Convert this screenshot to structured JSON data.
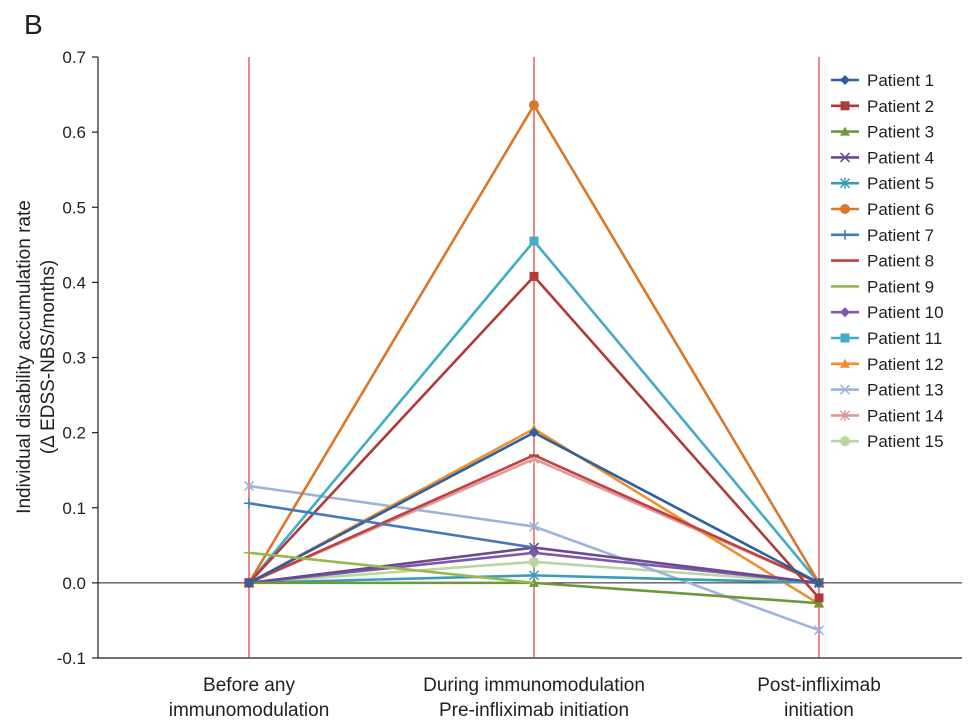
{
  "panel_letter": "B",
  "chart_data": {
    "type": "line",
    "title": "",
    "ylabel_line1": "Individual disability accumulation rate",
    "ylabel_line2": "(Δ EDSS-NBS/months)",
    "xlabel": "",
    "ylim": [
      -0.1,
      0.7
    ],
    "yticks": [
      -0.1,
      0.0,
      0.1,
      0.2,
      0.3,
      0.4,
      0.5,
      0.6,
      0.7
    ],
    "ytick_labels": [
      "-0.1",
      "0.0",
      "0.1",
      "0.2",
      "0.3",
      "0.4",
      "0.5",
      "0.6",
      "0.7"
    ],
    "categories": [
      [
        "Before any",
        "immunomodulation"
      ],
      [
        "During immunomodulation",
        "Pre-infliximab initiation"
      ],
      [
        "Post-infliximab",
        "initiation"
      ]
    ],
    "grid": false,
    "legend_position": "top-right",
    "series": [
      {
        "name": "Patient 1",
        "color": "#2e5f9e",
        "marker": "diamond",
        "values": [
          0.0,
          0.2,
          0.0
        ]
      },
      {
        "name": "Patient 2",
        "color": "#b03a37",
        "marker": "square",
        "values": [
          0.0,
          0.408,
          -0.02
        ]
      },
      {
        "name": "Patient 3",
        "color": "#6f973b",
        "marker": "triangle",
        "values": [
          0.0,
          0.0,
          -0.027
        ]
      },
      {
        "name": "Patient 4",
        "color": "#6b4a8f",
        "marker": "x",
        "values": [
          0.0,
          0.047,
          0.0
        ]
      },
      {
        "name": "Patient 5",
        "color": "#3a9db5",
        "marker": "star",
        "values": [
          0.0,
          0.01,
          0.0
        ]
      },
      {
        "name": "Patient 6",
        "color": "#d9772b",
        "marker": "circle",
        "values": [
          0.0,
          0.636,
          0.0
        ]
      },
      {
        "name": "Patient 7",
        "color": "#4579bd",
        "marker": "plus",
        "values": [
          0.106,
          null,
          null
        ]
      },
      {
        "name": "Patient 8",
        "color": "#c2413f",
        "marker": "dash",
        "values": [
          0.0,
          0.17,
          0.0
        ]
      },
      {
        "name": "Patient 9",
        "color": "#96b853",
        "marker": "dash",
        "values": [
          0.04,
          null,
          null
        ]
      },
      {
        "name": "Patient 10",
        "color": "#7f5aa8",
        "marker": "diamond",
        "values": [
          0.0,
          0.04,
          0.0
        ]
      },
      {
        "name": "Patient 11",
        "color": "#41acc8",
        "marker": "square",
        "values": [
          0.0,
          0.455,
          0.0
        ]
      },
      {
        "name": "Patient 12",
        "color": "#f28e2b",
        "marker": "triangle",
        "values": [
          0.0,
          0.205,
          -0.028
        ]
      },
      {
        "name": "Patient 13",
        "color": "#9db4da",
        "marker": "x",
        "values": [
          0.129,
          0.075,
          -0.063
        ]
      },
      {
        "name": "Patient 14",
        "color": "#dc9b9a",
        "marker": "star",
        "values": [
          0.0,
          0.165,
          0.0
        ]
      },
      {
        "name": "Patient 15",
        "color": "#bad7a2",
        "marker": "circle",
        "values": [
          0.0,
          0.028,
          0.0
        ]
      }
    ]
  }
}
